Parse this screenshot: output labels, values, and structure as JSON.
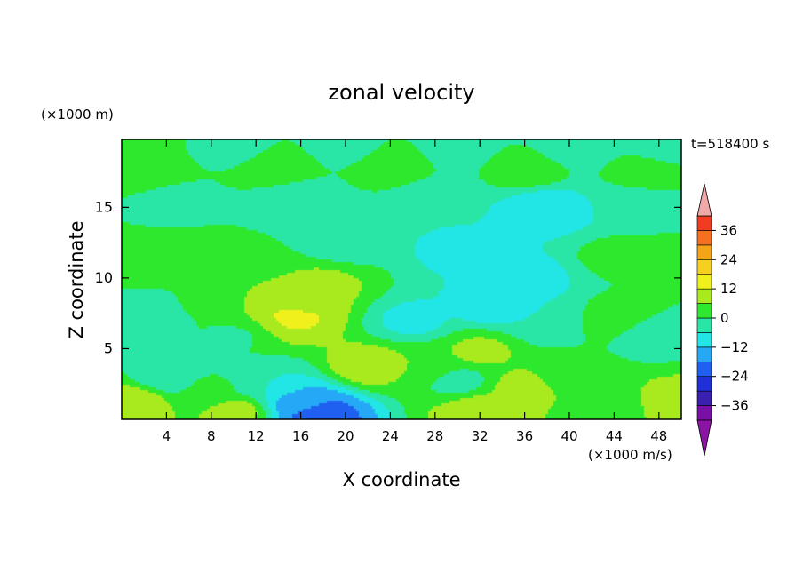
{
  "chart_data": {
    "type": "heatmap",
    "title": "zonal velocity",
    "xlabel": "X coordinate",
    "ylabel": "Z coordinate",
    "y_unit": "(×1000 m)",
    "x_unit": "(×1000 m/s)",
    "time_label": "t=518400 s",
    "xlim": [
      0,
      50
    ],
    "ylim": [
      0,
      19.8
    ],
    "x_ticks": [
      4,
      8,
      12,
      16,
      20,
      24,
      28,
      32,
      36,
      40,
      44,
      48
    ],
    "y_ticks": [
      5,
      10,
      15
    ],
    "colorbar": {
      "levels": [
        -42,
        -36,
        -30,
        -24,
        -18,
        -12,
        -6,
        0,
        6,
        12,
        18,
        24,
        30,
        36,
        42
      ],
      "tick_values": [
        36,
        24,
        12,
        0,
        -12,
        -24,
        -36
      ],
      "tick_labels": [
        "36",
        "24",
        "12",
        "0",
        "−12",
        "−24",
        "−36"
      ],
      "colors": [
        "#7a0fa8",
        "#3a1fb0",
        "#2030d8",
        "#2060f0",
        "#25a8f5",
        "#22e5e5",
        "#2ae6a6",
        "#2ee82e",
        "#a8ea1e",
        "#f0f01c",
        "#f5d020",
        "#f5a418",
        "#f77020",
        "#f23c22",
        "#e61e26"
      ],
      "over_color": "#f0a8a8",
      "under_color": "#8c14a4"
    },
    "contour_points": [
      {
        "x": 1,
        "z": 19.2,
        "v": 2
      },
      {
        "x": 10,
        "z": 19.2,
        "v": -2
      },
      {
        "x": 20,
        "z": 19.2,
        "v": -3
      },
      {
        "x": 30,
        "z": 19.2,
        "v": -4
      },
      {
        "x": 40,
        "z": 19.2,
        "v": -3
      },
      {
        "x": 49,
        "z": 19.2,
        "v": -2
      },
      {
        "x": 2,
        "z": 17.2,
        "v": 4
      },
      {
        "x": 14,
        "z": 17.8,
        "v": 4
      },
      {
        "x": 24,
        "z": 18.0,
        "v": 5
      },
      {
        "x": 36,
        "z": 17.8,
        "v": 4
      },
      {
        "x": 47,
        "z": 17.3,
        "v": 3
      },
      {
        "x": 4,
        "z": 15.5,
        "v": -3
      },
      {
        "x": 16,
        "z": 15.5,
        "v": -5
      },
      {
        "x": 28,
        "z": 15.5,
        "v": -5
      },
      {
        "x": 38,
        "z": 14.8,
        "v": -10
      },
      {
        "x": 46,
        "z": 15.3,
        "v": -4
      },
      {
        "x": 1,
        "z": 12,
        "v": 1
      },
      {
        "x": 5,
        "z": 11.5,
        "v": 2
      },
      {
        "x": 10,
        "z": 11.5,
        "v": 1
      },
      {
        "x": 20,
        "z": 12.5,
        "v": -3
      },
      {
        "x": 30,
        "z": 12,
        "v": -7
      },
      {
        "x": 36,
        "z": 10,
        "v": -9
      },
      {
        "x": 44,
        "z": 11.5,
        "v": 1
      },
      {
        "x": 49,
        "z": 11.5,
        "v": 1
      },
      {
        "x": 15,
        "z": 8,
        "v": 10
      },
      {
        "x": 15,
        "z": 7.3,
        "v": 14
      },
      {
        "x": 18,
        "z": 9.5,
        "v": 7
      },
      {
        "x": 12,
        "z": 7,
        "v": 6
      },
      {
        "x": 4,
        "z": 7.5,
        "v": -2
      },
      {
        "x": 7,
        "z": 8,
        "v": 1
      },
      {
        "x": 10,
        "z": 6,
        "v": -1
      },
      {
        "x": 26,
        "z": 7,
        "v": -7
      },
      {
        "x": 33,
        "z": 8,
        "v": -8
      },
      {
        "x": 38,
        "z": 7,
        "v": -6
      },
      {
        "x": 44,
        "z": 7,
        "v": 4
      },
      {
        "x": 47,
        "z": 6,
        "v": -3
      },
      {
        "x": 22,
        "z": 3.8,
        "v": 9
      },
      {
        "x": 28,
        "z": 3.8,
        "v": 6
      },
      {
        "x": 32,
        "z": 4.8,
        "v": 7
      },
      {
        "x": 36,
        "z": 2.2,
        "v": 8
      },
      {
        "x": 30,
        "z": 2.8,
        "v": -2
      },
      {
        "x": 40,
        "z": 3,
        "v": 3
      },
      {
        "x": 4,
        "z": 3,
        "v": -3
      },
      {
        "x": 8,
        "z": 2,
        "v": 1
      },
      {
        "x": 13,
        "z": 2.5,
        "v": -6
      },
      {
        "x": 16,
        "z": 1.2,
        "v": -14
      },
      {
        "x": 17.5,
        "z": 0.4,
        "v": -22
      },
      {
        "x": 1,
        "z": 1.2,
        "v": 10
      },
      {
        "x": 10,
        "z": 0.6,
        "v": 8
      },
      {
        "x": 32,
        "z": 0.5,
        "v": 10
      },
      {
        "x": 49,
        "z": 1,
        "v": 10
      },
      {
        "x": 44,
        "z": 0.8,
        "v": 1
      }
    ]
  }
}
